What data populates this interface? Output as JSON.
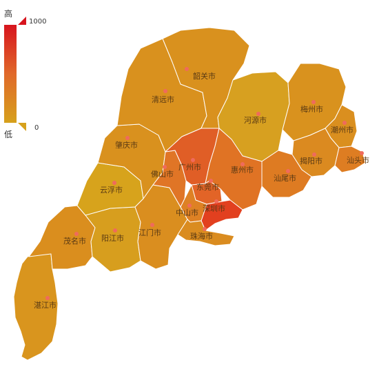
{
  "visual_map": {
    "high_label": "高",
    "low_label": "低",
    "max_value": "1000",
    "min_value": "0",
    "color_high": "#d7141e",
    "color_mid": "#e0692a",
    "color_low": "#d6a11c"
  },
  "regions": [
    {
      "id": "shaoguan",
      "name": "韶关市",
      "color": "#d9911e"
    },
    {
      "id": "qingyuan",
      "name": "清远市",
      "color": "#d9911e"
    },
    {
      "id": "heyuan",
      "name": "河源市",
      "color": "#d7a020"
    },
    {
      "id": "meizhou",
      "name": "梅州市",
      "color": "#d9921e"
    },
    {
      "id": "chaozhou",
      "name": "潮州市",
      "color": "#da8f1f"
    },
    {
      "id": "shantou",
      "name": "汕头市",
      "color": "#de7d22"
    },
    {
      "id": "jieyang",
      "name": "揭阳市",
      "color": "#db8a20"
    },
    {
      "id": "shanwei",
      "name": "汕尾市",
      "color": "#de7b22"
    },
    {
      "id": "huizhou",
      "name": "惠州市",
      "color": "#e07324"
    },
    {
      "id": "dongguan",
      "name": "东莞市",
      "color": "#e26427"
    },
    {
      "id": "shenzhen",
      "name": "深圳市",
      "color": "#e2401f"
    },
    {
      "id": "guangzhou",
      "name": "广州市",
      "color": "#e05e26"
    },
    {
      "id": "foshan",
      "name": "佛山市",
      "color": "#e07526"
    },
    {
      "id": "zhaoqing",
      "name": "肇庆市",
      "color": "#d9911e"
    },
    {
      "id": "yunfu",
      "name": "云浮市",
      "color": "#d7a31c"
    },
    {
      "id": "zhongshan",
      "name": "中山市",
      "color": "#de8124"
    },
    {
      "id": "zhuhai",
      "name": "珠海市",
      "color": "#da8c20"
    },
    {
      "id": "jiangmen",
      "name": "江门市",
      "color": "#da8e1f"
    },
    {
      "id": "yangjiang",
      "name": "阳江市",
      "color": "#d79e1e"
    },
    {
      "id": "maoming",
      "name": "茂名市",
      "color": "#da8e1e"
    },
    {
      "id": "zhanjiang",
      "name": "湛江市",
      "color": "#d9951e"
    }
  ]
}
